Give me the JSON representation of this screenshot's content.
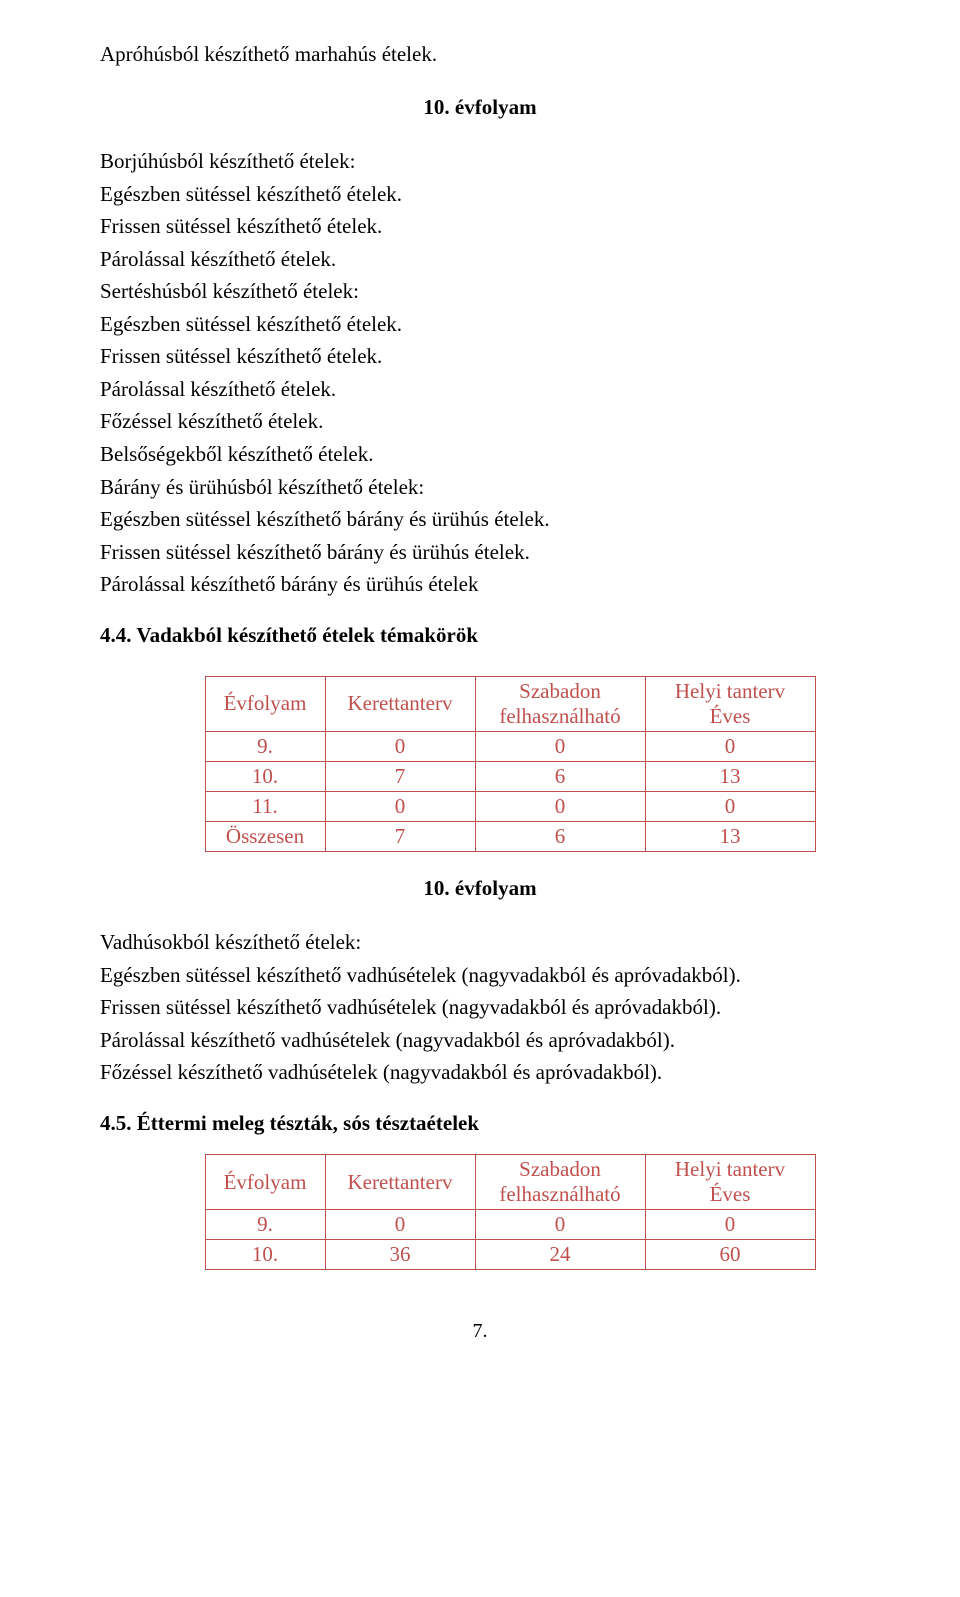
{
  "colors": {
    "table_border": "#c0504d",
    "table_text": "#c0504d",
    "body_text": "#000000"
  },
  "intro_line": "Apróhúsból készíthető marhahús ételek.",
  "grade_heading_1": "10. évfolyam",
  "list1": [
    "Borjúhúsból készíthető ételek:",
    "Egészben sütéssel készíthető ételek.",
    "Frissen sütéssel készíthető ételek.",
    "Párolással készíthető ételek.",
    "Sertéshúsból készíthető ételek:",
    "Egészben sütéssel készíthető ételek.",
    "Frissen sütéssel készíthető ételek.",
    "Párolással készíthető ételek.",
    "Főzéssel készíthető ételek.",
    "Belsőségekből készíthető ételek.",
    "Bárány és ürühúsból készíthető ételek:",
    "Egészben sütéssel készíthető bárány és ürühús ételek.",
    "Frissen sütéssel készíthető bárány és ürühús ételek.",
    "Párolással készíthető bárány és ürühús ételek"
  ],
  "section_44": "4.4. Vadakból készíthető ételek témakörök",
  "table1": {
    "header": {
      "col1": "Évfolyam",
      "col2": "Kerettanterv",
      "col3_line1": "Szabadon",
      "col3_line2": "felhasználható",
      "col4_line1": "Helyi tanterv",
      "col4_line2": "Éves"
    },
    "rows": [
      {
        "c1": "9.",
        "c2": "0",
        "c3": "0",
        "c4": "0"
      },
      {
        "c1": "10.",
        "c2": "7",
        "c3": "6",
        "c4": "13"
      },
      {
        "c1": "11.",
        "c2": "0",
        "c3": "0",
        "c4": "0"
      },
      {
        "c1": "Összesen",
        "c2": "7",
        "c3": "6",
        "c4": "13"
      }
    ],
    "col_widths": {
      "c1": 120,
      "c2": 150,
      "c3": 170,
      "c4": 170
    }
  },
  "grade_heading_2": "10. évfolyam",
  "list2": [
    "Vadhúsokból készíthető ételek:",
    "Egészben sütéssel készíthető vadhúsételek (nagyvadakból és apróvadakból).",
    "Frissen sütéssel készíthető vadhúsételek (nagyvadakból és apróvadakból).",
    "Párolással készíthető vadhúsételek (nagyvadakból és apróvadakból).",
    "Főzéssel készíthető vadhúsételek (nagyvadakból és apróvadakból)."
  ],
  "section_45": "4.5. Éttermi meleg tészták, sós tésztaételek",
  "table2": {
    "header": {
      "col1": "Évfolyam",
      "col2": "Kerettanterv",
      "col3_line1": "Szabadon",
      "col3_line2": "felhasználható",
      "col4_line1": "Helyi tanterv",
      "col4_line2": "Éves"
    },
    "rows": [
      {
        "c1": "9.",
        "c2": "0",
        "c3": "0",
        "c4": "0"
      },
      {
        "c1": "10.",
        "c2": "36",
        "c3": "24",
        "c4": "60"
      }
    ],
    "col_widths": {
      "c1": 120,
      "c2": 150,
      "c3": 170,
      "c4": 170
    }
  },
  "page_number": "7."
}
